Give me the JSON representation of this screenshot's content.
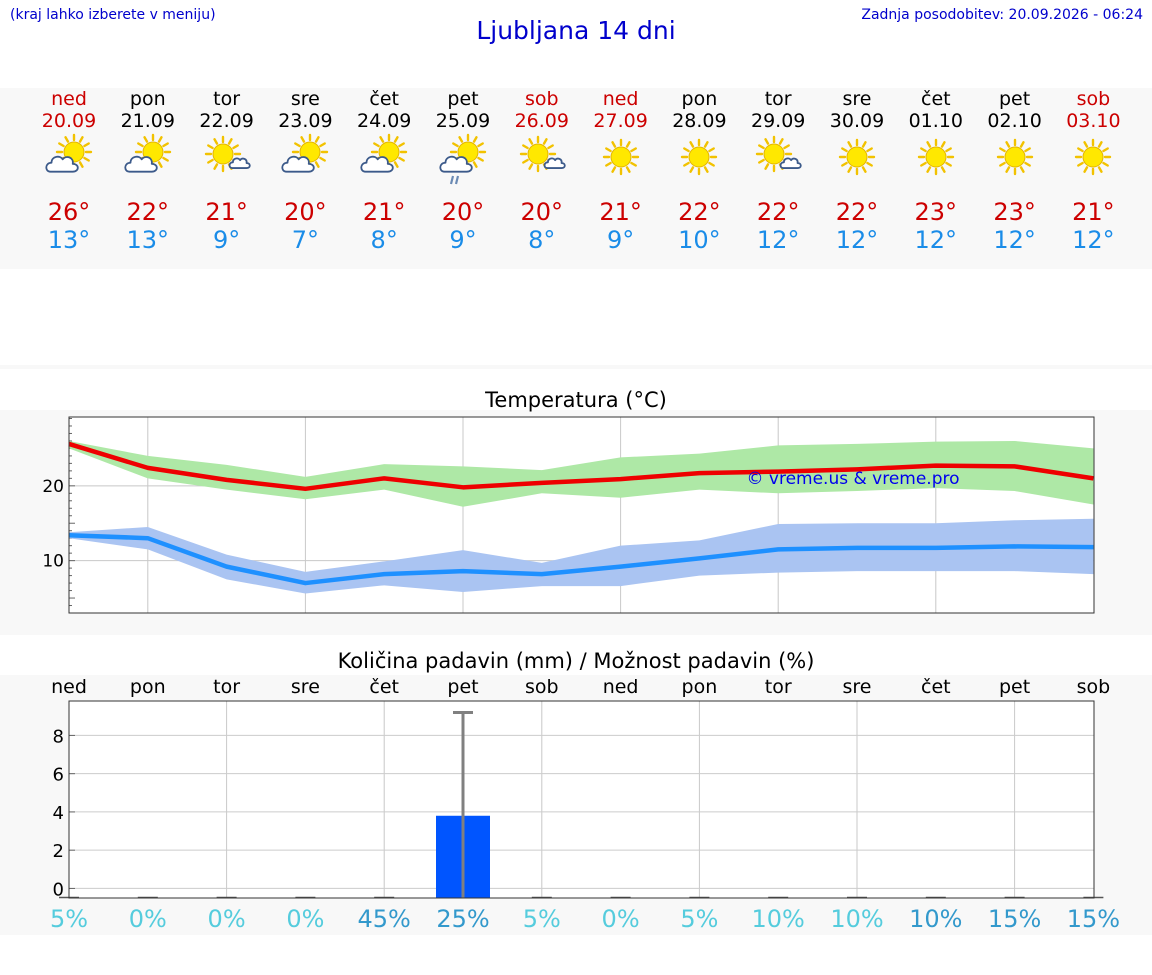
{
  "header": {
    "hint": "(kraj lahko izberete v meniju)",
    "title": "Ljubljana 14 dni",
    "updated": "Zadnja posodobitev: 20.09.2026 - 06:24"
  },
  "days": [
    {
      "name": "ned",
      "date": "20.09",
      "weekend": true,
      "icon": "sun-cloud-icon",
      "max": "26°",
      "min": "13°"
    },
    {
      "name": "pon",
      "date": "21.09",
      "weekend": false,
      "icon": "sun-cloud-icon",
      "max": "22°",
      "min": "13°"
    },
    {
      "name": "tor",
      "date": "22.09",
      "weekend": false,
      "icon": "sun-small-cloud-icon",
      "max": "21°",
      "min": "9°"
    },
    {
      "name": "sre",
      "date": "23.09",
      "weekend": false,
      "icon": "sun-cloud-icon",
      "max": "20°",
      "min": "7°"
    },
    {
      "name": "čet",
      "date": "24.09",
      "weekend": false,
      "icon": "sun-cloud-icon",
      "max": "21°",
      "min": "8°"
    },
    {
      "name": "pet",
      "date": "25.09",
      "weekend": false,
      "icon": "sun-cloud-rain-icon",
      "max": "20°",
      "min": "9°"
    },
    {
      "name": "sob",
      "date": "26.09",
      "weekend": true,
      "icon": "sun-small-cloud-icon",
      "max": "20°",
      "min": "8°"
    },
    {
      "name": "ned",
      "date": "27.09",
      "weekend": true,
      "icon": "sun-icon",
      "max": "21°",
      "min": "9°"
    },
    {
      "name": "pon",
      "date": "28.09",
      "weekend": false,
      "icon": "sun-icon",
      "max": "22°",
      "min": "10°"
    },
    {
      "name": "tor",
      "date": "29.09",
      "weekend": false,
      "icon": "sun-small-cloud-icon",
      "max": "22°",
      "min": "12°"
    },
    {
      "name": "sre",
      "date": "30.09",
      "weekend": false,
      "icon": "sun-icon",
      "max": "22°",
      "min": "12°"
    },
    {
      "name": "čet",
      "date": "01.10",
      "weekend": false,
      "icon": "sun-icon",
      "max": "23°",
      "min": "12°"
    },
    {
      "name": "pet",
      "date": "02.10",
      "weekend": false,
      "icon": "sun-icon",
      "max": "23°",
      "min": "12°"
    },
    {
      "name": "sob",
      "date": "03.10",
      "weekend": true,
      "icon": "sun-icon",
      "max": "21°",
      "min": "12°"
    }
  ],
  "colors": {
    "max_line": "#ee0000",
    "max_band": "#aee8a6",
    "min_line": "#1e90ff",
    "min_band": "#aac4f2",
    "bar": "#0055ff",
    "whisker": "#808080",
    "weekend": "#cc0000",
    "pct_light": "#55ccdd",
    "pct_dark": "#3399cc"
  },
  "chart_data": [
    {
      "type": "line",
      "title": "Temperatura (°C)",
      "watermark": "© vreme.us & vreme.pro",
      "x": [
        0,
        1,
        2,
        3,
        4,
        5,
        6,
        7,
        8,
        9,
        10,
        11,
        12,
        13
      ],
      "ylim": [
        3,
        29.2
      ],
      "yticks": [
        10,
        20
      ],
      "grid": true,
      "series": [
        {
          "name": "max",
          "values": [
            25.6,
            22.4,
            20.8,
            19.6,
            21.0,
            19.8,
            20.4,
            20.9,
            21.7,
            21.9,
            22.2,
            22.7,
            22.6,
            21.0
          ],
          "band_low": [
            25.0,
            21.0,
            19.5,
            18.2,
            19.5,
            17.2,
            19.0,
            18.4,
            19.5,
            19.0,
            19.3,
            19.7,
            19.3,
            17.5
          ],
          "band_high": [
            26.0,
            24.0,
            22.8,
            21.2,
            22.9,
            22.6,
            22.1,
            23.8,
            24.3,
            25.4,
            25.6,
            25.9,
            26.0,
            25.0
          ]
        },
        {
          "name": "min",
          "values": [
            13.4,
            13.0,
            9.2,
            7.0,
            8.2,
            8.6,
            8.2,
            9.2,
            10.3,
            11.5,
            11.7,
            11.7,
            11.9,
            11.8
          ],
          "band_low": [
            13.0,
            11.5,
            7.5,
            5.6,
            6.7,
            5.8,
            6.6,
            6.6,
            8.0,
            8.4,
            8.6,
            8.6,
            8.6,
            8.2
          ],
          "band_high": [
            13.8,
            14.5,
            10.8,
            8.5,
            9.9,
            11.4,
            9.7,
            12.0,
            12.7,
            14.9,
            15.0,
            15.0,
            15.4,
            15.6
          ]
        }
      ]
    },
    {
      "type": "bar",
      "title": "Količina padavin (mm) / Možnost padavin (%)",
      "categories": [
        "ned",
        "pon",
        "tor",
        "sre",
        "čet",
        "pet",
        "sob",
        "ned",
        "pon",
        "tor",
        "sre",
        "čet",
        "pet",
        "sob"
      ],
      "values": [
        0,
        0,
        0,
        0,
        0,
        3.8,
        0,
        0,
        0,
        0,
        0,
        0,
        0,
        0
      ],
      "max_values": [
        0,
        0,
        0,
        0,
        0,
        9.2,
        0,
        0,
        0,
        0,
        0,
        0,
        0,
        0
      ],
      "chance": [
        "5%",
        "0%",
        "0%",
        "0%",
        "45%",
        "25%",
        "5%",
        "0%",
        "5%",
        "10%",
        "10%",
        "10%",
        "15%",
        "15%"
      ],
      "ylim": [
        -0.5,
        9.8
      ],
      "yticks": [
        0,
        2,
        4,
        6,
        8
      ],
      "grid": true
    }
  ]
}
